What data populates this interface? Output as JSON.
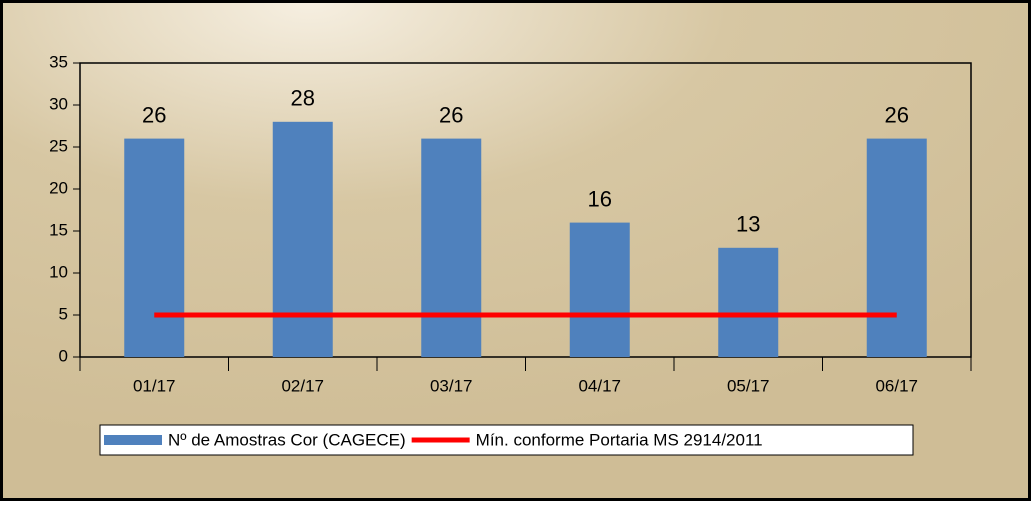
{
  "chart_data": {
    "type": "bar",
    "categories": [
      "01/17",
      "02/17",
      "03/17",
      "04/17",
      "05/17",
      "06/17"
    ],
    "series": [
      {
        "name": "Nº de Amostras Cor (CAGECE)",
        "type": "bar",
        "color": "#4f81bd",
        "values": [
          26,
          28,
          26,
          16,
          13,
          26
        ]
      },
      {
        "name": "Mín. conforme Portaria MS 2914/2011",
        "type": "line",
        "color": "#ff0000",
        "values": [
          5,
          5,
          5,
          5,
          5,
          5
        ]
      }
    ],
    "ylim": [
      0,
      35
    ],
    "yticks": [
      0,
      5,
      10,
      15,
      20,
      25,
      30,
      35
    ],
    "legend": "bottom",
    "grid": false
  }
}
